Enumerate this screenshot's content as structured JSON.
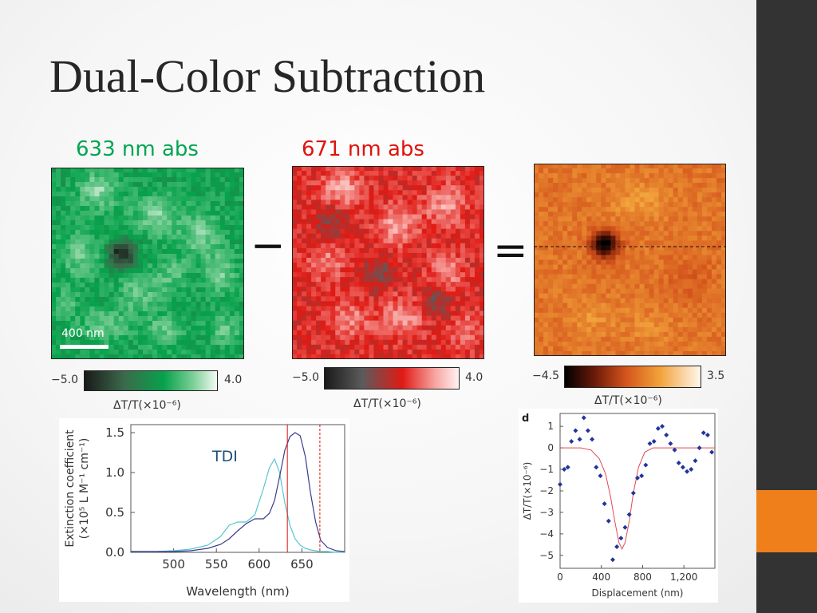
{
  "slide": {
    "title": "Dual-Color Subtraction",
    "colors": {
      "accent": "#ee7f1a",
      "sidebar": "#333333"
    }
  },
  "maps": {
    "green": {
      "label": "633 nm abs",
      "label_color": "#00a651",
      "scale_bar": "400 nm"
    },
    "red": {
      "label": "671 nm abs",
      "label_color": "#e0120d"
    },
    "difference": {
      "label": ""
    },
    "minus_sign": "−",
    "equals_sign": "="
  },
  "colorbars": {
    "green": {
      "min": "−5.0",
      "max": "4.0",
      "caption": "ΔT/T(×10⁻⁶)"
    },
    "red": {
      "min": "−5.0",
      "max": "4.0",
      "caption": "ΔT/T(×10⁻⁶)"
    },
    "orange": {
      "min": "−4.5",
      "max": "3.5",
      "caption": "ΔT/T(×10⁻⁶)"
    }
  },
  "chart_data": [
    {
      "type": "line",
      "annotation": "TDI",
      "xlabel": "Wavelength (nm)",
      "ylabel": "Extinction coefficient (×10⁵ L M⁻¹ cm⁻¹)",
      "xlim": [
        450,
        700
      ],
      "ylim": [
        0,
        1.6
      ],
      "xticks": [
        "500",
        "550",
        "600",
        "650"
      ],
      "yticks": [
        "0.0",
        "0.5",
        "1.0",
        "1.5"
      ],
      "x": [
        450,
        480,
        500,
        520,
        540,
        555,
        565,
        575,
        585,
        595,
        605,
        612,
        618,
        624,
        630,
        636,
        642,
        648,
        654,
        660,
        666,
        672,
        680,
        690,
        700
      ],
      "series": [
        {
          "color": "#55c8cc",
          "values": [
            0.01,
            0.01,
            0.02,
            0.04,
            0.09,
            0.2,
            0.34,
            0.38,
            0.38,
            0.47,
            0.8,
            1.06,
            1.17,
            1.0,
            0.62,
            0.34,
            0.17,
            0.09,
            0.05,
            0.03,
            0.02,
            0.01,
            0.01,
            0.0,
            0.0
          ]
        },
        {
          "color": "#3b3b8e",
          "values": [
            0.01,
            0.01,
            0.01,
            0.02,
            0.05,
            0.1,
            0.17,
            0.27,
            0.36,
            0.42,
            0.42,
            0.49,
            0.65,
            0.95,
            1.28,
            1.45,
            1.5,
            1.46,
            1.2,
            0.75,
            0.38,
            0.15,
            0.06,
            0.02,
            0.01
          ]
        }
      ],
      "reference_lines": [
        {
          "x": 633,
          "color": "#e0120d",
          "style": "solid"
        },
        {
          "x": 671,
          "color": "#e0120d",
          "style": "dashed"
        }
      ]
    },
    {
      "type": "scatter",
      "panel_label": "d",
      "xlabel": "Displacement (nm)",
      "ylabel": "ΔT/T(×10⁻⁶)",
      "xlim": [
        0,
        1500
      ],
      "ylim": [
        -5.6,
        1.6
      ],
      "xticks": [
        "0",
        "400",
        "800",
        "1,200"
      ],
      "yticks": [
        "1",
        "0",
        "−1",
        "−2",
        "−3",
        "−4",
        "−5"
      ],
      "points": {
        "color": "#22349a",
        "x": [
          0,
          40,
          75,
          110,
          150,
          190,
          230,
          270,
          310,
          350,
          390,
          430,
          470,
          510,
          550,
          590,
          630,
          670,
          710,
          750,
          790,
          830,
          870,
          910,
          950,
          990,
          1030,
          1070,
          1110,
          1150,
          1190,
          1230,
          1270,
          1310,
          1350,
          1390,
          1430,
          1470
        ],
        "y": [
          -1.7,
          -1.0,
          -0.9,
          0.3,
          0.8,
          0.4,
          1.4,
          0.8,
          0.4,
          -0.9,
          -1.3,
          -2.6,
          -3.4,
          -5.2,
          -4.6,
          -4.2,
          -3.7,
          -3.1,
          -2.1,
          -1.4,
          -1.3,
          -0.8,
          0.2,
          0.3,
          0.9,
          1.0,
          0.6,
          0.2,
          -0.1,
          -0.7,
          -0.9,
          -1.1,
          -1.0,
          -0.6,
          0.0,
          0.7,
          0.6,
          -0.2
        ]
      },
      "fit": {
        "color": "#e24a52",
        "x": [
          0,
          200,
          300,
          380,
          440,
          490,
          530,
          570,
          600,
          630,
          670,
          710,
          760,
          820,
          900,
          1000,
          1500
        ],
        "y": [
          0.0,
          0.0,
          -0.1,
          -0.5,
          -1.2,
          -2.3,
          -3.4,
          -4.4,
          -4.7,
          -4.4,
          -3.4,
          -2.1,
          -0.9,
          -0.2,
          0.0,
          0.0,
          0.0
        ]
      }
    }
  ]
}
